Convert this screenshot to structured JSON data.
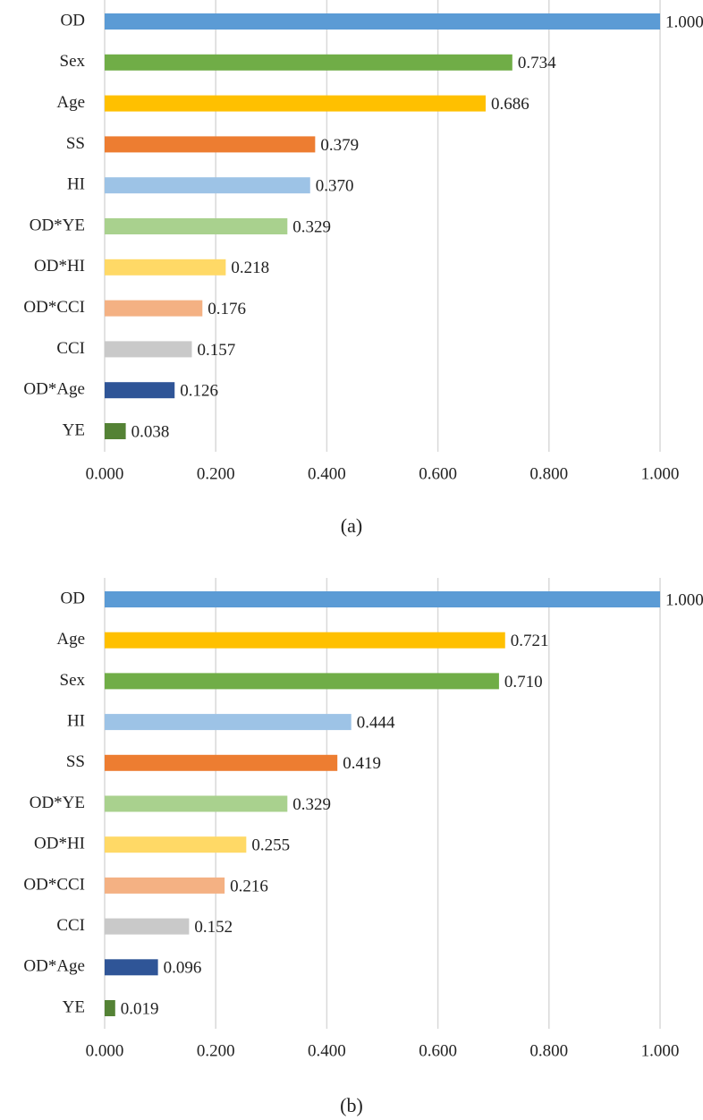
{
  "chart_data": [
    {
      "type": "bar",
      "orientation": "horizontal",
      "caption": "(a)",
      "categories": [
        "OD",
        "Sex",
        "Age",
        "SS",
        "HI",
        "OD*YE",
        "OD*HI",
        "OD*CCI",
        "CCI",
        "OD*Age",
        "YE"
      ],
      "values": [
        1.0,
        0.734,
        0.686,
        0.379,
        0.37,
        0.329,
        0.218,
        0.176,
        0.157,
        0.126,
        0.038
      ],
      "value_labels": [
        "1.000",
        "0.734",
        "0.686",
        "0.379",
        "0.370",
        "0.329",
        "0.218",
        "0.176",
        "0.157",
        "0.126",
        "0.038"
      ],
      "colors": [
        "#5b9bd5",
        "#70ad47",
        "#ffc000",
        "#ed7d31",
        "#9dc3e6",
        "#a9d18e",
        "#ffd966",
        "#f4b183",
        "#c9c9c9",
        "#2f5597",
        "#548235"
      ],
      "xlim": [
        0,
        1
      ],
      "xticks": [
        {
          "value": 0,
          "label": "0.000"
        },
        {
          "value": 0.2,
          "label": "0.200"
        },
        {
          "value": 0.4,
          "label": "0.400"
        },
        {
          "value": 0.6,
          "label": "0.600"
        },
        {
          "value": 0.8,
          "label": "0.800"
        },
        {
          "value": 1,
          "label": "1.000"
        }
      ],
      "grid": true
    },
    {
      "type": "bar",
      "orientation": "horizontal",
      "caption": "(b)",
      "categories": [
        "OD",
        "Age",
        "Sex",
        "HI",
        "SS",
        "OD*YE",
        "OD*HI",
        "OD*CCI",
        "CCI",
        "OD*Age",
        "YE"
      ],
      "values": [
        1.0,
        0.721,
        0.71,
        0.444,
        0.419,
        0.329,
        0.255,
        0.216,
        0.152,
        0.096,
        0.019
      ],
      "value_labels": [
        "1.000",
        "0.721",
        "0.710",
        "0.444",
        "0.419",
        "0.329",
        "0.255",
        "0.216",
        "0.152",
        "0.096",
        "0.019"
      ],
      "colors": [
        "#5b9bd5",
        "#ffc000",
        "#70ad47",
        "#9dc3e6",
        "#ed7d31",
        "#a9d18e",
        "#ffd966",
        "#f4b183",
        "#c9c9c9",
        "#2f5597",
        "#548235"
      ],
      "xlim": [
        0,
        1
      ],
      "xticks": [
        {
          "value": 0,
          "label": "0.000"
        },
        {
          "value": 0.2,
          "label": "0.200"
        },
        {
          "value": 0.4,
          "label": "0.400"
        },
        {
          "value": 0.6,
          "label": "0.600"
        },
        {
          "value": 0.8,
          "label": "0.800"
        },
        {
          "value": 1,
          "label": "1.000"
        }
      ],
      "grid": true
    }
  ]
}
